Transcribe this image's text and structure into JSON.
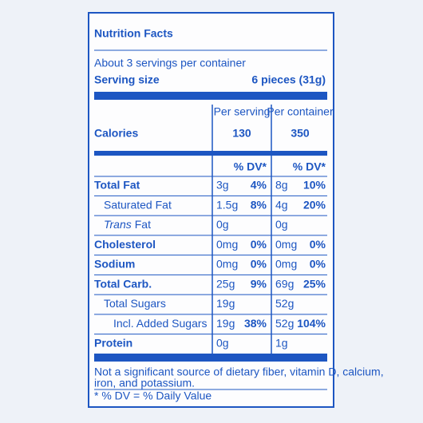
{
  "title": "Nutrition Facts",
  "servings": "About 3 servings per container",
  "serving_size": {
    "label": "Serving size",
    "value": "6 pieces (31g)"
  },
  "columns": [
    "Per serving",
    "Per container"
  ],
  "calories": {
    "label": "Calories",
    "values": [
      130,
      350
    ]
  },
  "dv_header": [
    "% DV*",
    "% DV*"
  ],
  "rows": [
    {
      "name": "Total Fat",
      "level": 0,
      "amount": [
        "3g",
        "8g"
      ],
      "dv": [
        "4%",
        "10%"
      ]
    },
    {
      "name": "Saturated Fat",
      "level": 1,
      "amount": [
        "1.5g",
        "4g"
      ],
      "dv": [
        "8%",
        "20%"
      ]
    },
    {
      "name_italic": "Trans",
      "name": "Fat",
      "level": 1,
      "amount": [
        "0g",
        "0g"
      ]
    },
    {
      "name": "Cholesterol",
      "level": 0,
      "amount": [
        "0mg",
        "0mg"
      ],
      "dv": [
        "0%",
        "0%"
      ]
    },
    {
      "name": "Sodium",
      "level": 0,
      "amount": [
        "0mg",
        "0mg"
      ],
      "dv": [
        "0%",
        "0%"
      ]
    },
    {
      "name": "Total Carb.",
      "level": 0,
      "amount": [
        "25g",
        "69g"
      ],
      "dv": [
        "9%",
        "25%"
      ]
    },
    {
      "name": "Total Sugars",
      "level": 1,
      "amount": [
        "19g",
        "52g"
      ]
    },
    {
      "name": "Incl. Added Sugars",
      "level": 2,
      "amount": [
        "19g",
        "52g"
      ],
      "dv": [
        "38%",
        "104%"
      ]
    },
    {
      "name": "Protein",
      "level": 0,
      "amount": [
        "0g",
        "1g"
      ]
    }
  ],
  "footnote": [
    "Not a significant source of dietary fiber, vitamin D, calcium,",
    "iron, and potassium."
  ],
  "dv_note": "* % DV = % Daily Value"
}
